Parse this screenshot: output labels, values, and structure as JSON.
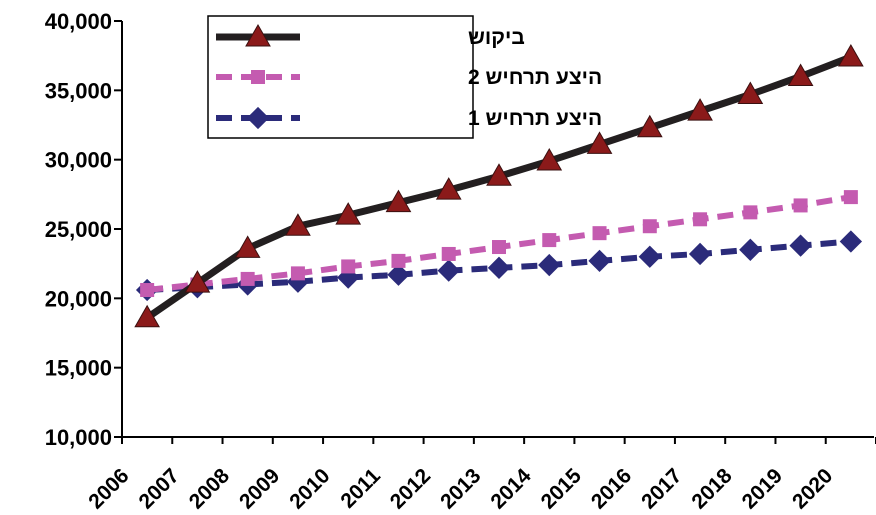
{
  "chart_data": {
    "type": "line",
    "categories": [
      "2006",
      "2007",
      "2008",
      "2009",
      "2010",
      "2011",
      "2012",
      "2013",
      "2014",
      "2015",
      "2016",
      "2017",
      "2018",
      "2019",
      "2020"
    ],
    "ylim": [
      10000,
      40000
    ],
    "yticks": [
      "10,000",
      "15,000",
      "20,000",
      "25,000",
      "30,000",
      "35,000",
      "40,000"
    ],
    "ytick_values": [
      10000,
      15000,
      20000,
      25000,
      30000,
      35000,
      40000
    ],
    "grid": false,
    "legend_position": "top-left",
    "series": [
      {
        "name": "ביקוש",
        "color": "#231f20",
        "marker": "triangle",
        "marker_color": "#8b1a1a",
        "dash": "solid",
        "values": [
          18600,
          21100,
          23600,
          25200,
          26000,
          26900,
          27800,
          28800,
          29900,
          31100,
          32300,
          33500,
          34700,
          36000,
          37400
        ]
      },
      {
        "name": "היצע תרחיש 2",
        "color": "#c45bb0",
        "marker": "square",
        "marker_color": "#c45bb0",
        "dash": "dashed",
        "values": [
          20600,
          21000,
          21400,
          21800,
          22300,
          22700,
          23200,
          23700,
          24200,
          24700,
          25200,
          25700,
          26200,
          26700,
          27300
        ]
      },
      {
        "name": "היצע תרחיש 1",
        "color": "#2b2b7a",
        "marker": "diamond",
        "marker_color": "#2b2b7a",
        "dash": "dashed",
        "values": [
          20600,
          20800,
          21000,
          21200,
          21500,
          21700,
          22000,
          22200,
          22400,
          22700,
          23000,
          23200,
          23500,
          23800,
          24100
        ]
      }
    ]
  }
}
